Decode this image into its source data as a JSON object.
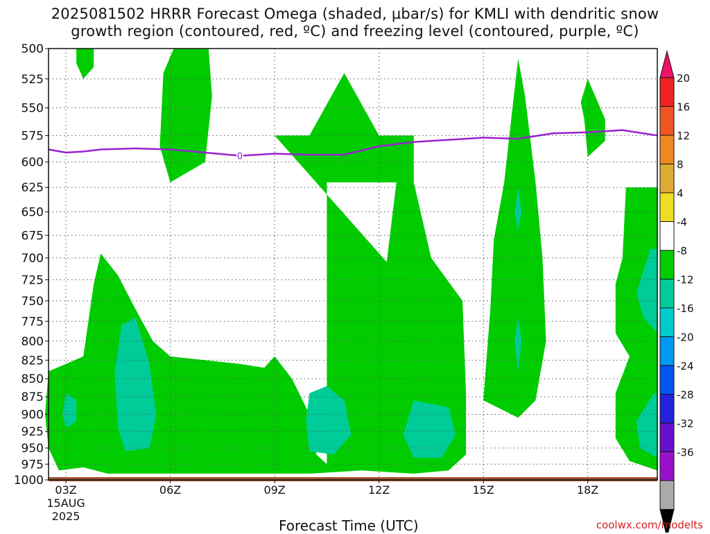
{
  "title": {
    "line1": "2025081502 HRRR Forecast Omega (shaded, µbar/s) for KMLI with dendritic snow",
    "line2": "growth region (contoured, red, ºC) and freezing level (contoured, purple, ºC)"
  },
  "xlabel": "Forecast Time (UTC)",
  "credit": "coolwx.com/modelts",
  "colors": {
    "green": "#00cc00",
    "teal": "#00cc99",
    "cyan_light": "#00cccc",
    "freezing": "#9922cc",
    "ground": "#a0522d",
    "grid": "#555555"
  },
  "chart_data": {
    "type": "heatmap",
    "title": "2025081502 HRRR Forecast Omega (shaded, µbar/s) for KMLI with dendritic snow growth region (contoured, red, ºC) and freezing level (contoured, purple, ºC)",
    "xlabel": "Forecast Time (UTC)",
    "ylabel": "",
    "x_range_hours": [
      2.5,
      20.0
    ],
    "y_ticks": [
      500,
      525,
      550,
      575,
      600,
      625,
      650,
      675,
      700,
      725,
      750,
      775,
      800,
      825,
      850,
      875,
      900,
      925,
      950,
      975,
      1000
    ],
    "y_range_mb": [
      500,
      1000
    ],
    "y_scale": "log-pressure",
    "x_ticks": [
      {
        "hour": 3,
        "label": "03Z",
        "date": "15AUG",
        "year": "2025"
      },
      {
        "hour": 6,
        "label": "06Z"
      },
      {
        "hour": 9,
        "label": "09Z"
      },
      {
        "hour": 12,
        "label": "12Z"
      },
      {
        "hour": 15,
        "label": "15Z"
      },
      {
        "hour": 18,
        "label": "18Z"
      }
    ],
    "colorbar": {
      "levels": [
        20,
        16,
        12,
        8,
        4,
        -4,
        -8,
        -12,
        -16,
        -20,
        -24,
        -28,
        -32,
        -36
      ],
      "colors": [
        "#ee1166",
        "#ee2222",
        "#ee5522",
        "#ee8822",
        "#ddaa33",
        "#eedd22",
        "#ffffff",
        "#00cc00",
        "#00cc99",
        "#00cccc",
        "#0099ee",
        "#0055ee",
        "#2222dd",
        "#6611cc",
        "#9911cc",
        "#aaaaaa",
        "#000000"
      ]
    },
    "freezing_level": {
      "label": "0",
      "points": [
        [
          2.5,
          588
        ],
        [
          3.0,
          591
        ],
        [
          3.5,
          590
        ],
        [
          4.0,
          588
        ],
        [
          5.0,
          587
        ],
        [
          6.0,
          588
        ],
        [
          7.0,
          591
        ],
        [
          8.0,
          594
        ],
        [
          9.0,
          592
        ],
        [
          10.0,
          593
        ],
        [
          11.0,
          593
        ],
        [
          12.0,
          585
        ],
        [
          13.0,
          581
        ],
        [
          14.0,
          579
        ],
        [
          15.0,
          577
        ],
        [
          16.0,
          578
        ],
        [
          17.0,
          573
        ],
        [
          18.0,
          572
        ],
        [
          19.0,
          570
        ],
        [
          20.0,
          575
        ]
      ],
      "label_at": [
        8.0,
        594
      ]
    },
    "omega_regions": [
      {
        "level": "-4 to -8",
        "color": "green",
        "hour_mb": [
          [
            3.5,
            500
          ],
          [
            3.8,
            500
          ],
          [
            3.8,
            515
          ],
          [
            3.5,
            525
          ],
          [
            3.3,
            512
          ],
          [
            3.3,
            500
          ]
        ]
      },
      {
        "level": "-4 to -8",
        "color": "green",
        "hour_mb": [
          [
            6.1,
            500
          ],
          [
            7.1,
            500
          ],
          [
            7.2,
            540
          ],
          [
            7.0,
            600
          ],
          [
            6.0,
            620
          ],
          [
            5.7,
            585
          ],
          [
            5.8,
            520
          ]
        ]
      },
      {
        "level": "-4 to -8",
        "color": "green",
        "hour_mb": [
          [
            9.0,
            575
          ],
          [
            10.0,
            575
          ],
          [
            11.0,
            520
          ],
          [
            12.0,
            575
          ],
          [
            13.0,
            575
          ],
          [
            13.0,
            620
          ],
          [
            12.0,
            620
          ],
          [
            10.5,
            620
          ],
          [
            10.5,
            640
          ],
          [
            10.5,
            975
          ],
          [
            10.2,
            960
          ],
          [
            10.0,
            900
          ],
          [
            9.5,
            850
          ],
          [
            9.0,
            820
          ],
          [
            8.7,
            835
          ],
          [
            8.0,
            830
          ],
          [
            6.0,
            820
          ],
          [
            5.5,
            800
          ],
          [
            5.0,
            760
          ],
          [
            4.5,
            720
          ],
          [
            4.0,
            695
          ],
          [
            3.8,
            730
          ],
          [
            3.5,
            820
          ],
          [
            3.0,
            830
          ],
          [
            2.5,
            840
          ],
          [
            2.4,
            900
          ],
          [
            2.5,
            950
          ],
          [
            2.8,
            985
          ],
          [
            3.5,
            980
          ],
          [
            4.2,
            990
          ],
          [
            5.0,
            990
          ],
          [
            7.0,
            990
          ],
          [
            10.0,
            990
          ],
          [
            11.5,
            985
          ],
          [
            13.0,
            990
          ],
          [
            14.0,
            985
          ],
          [
            14.5,
            960
          ],
          [
            14.5,
            870
          ],
          [
            14.4,
            750
          ],
          [
            13.5,
            700
          ],
          [
            13.0,
            620
          ],
          [
            12.5,
            620
          ],
          [
            12.0,
            780
          ],
          [
            11.5,
            850
          ],
          [
            12.0,
            880
          ],
          [
            12.5,
            830
          ],
          [
            12.8,
            770
          ],
          [
            13.0,
            740
          ]
        ]
      },
      {
        "level": "-4 to -8",
        "color": "green",
        "hour_mb": [
          [
            16.0,
            508
          ],
          [
            16.2,
            540
          ],
          [
            16.5,
            620
          ],
          [
            16.7,
            700
          ],
          [
            16.8,
            800
          ],
          [
            16.5,
            880
          ],
          [
            16.0,
            905
          ],
          [
            15.0,
            880
          ],
          [
            15.2,
            760
          ],
          [
            15.3,
            680
          ],
          [
            15.6,
            620
          ],
          [
            15.8,
            560
          ]
        ]
      },
      {
        "level": "-4 to -8",
        "color": "green",
        "hour_mb": [
          [
            18.0,
            525
          ],
          [
            18.5,
            560
          ],
          [
            18.5,
            580
          ],
          [
            18.0,
            595
          ],
          [
            17.9,
            560
          ],
          [
            17.8,
            545
          ]
        ]
      },
      {
        "level": "-4 to -8",
        "color": "green",
        "hour_mb": [
          [
            19.1,
            625
          ],
          [
            20.0,
            625
          ],
          [
            20.0,
            985
          ],
          [
            19.2,
            970
          ],
          [
            18.8,
            935
          ],
          [
            18.8,
            870
          ],
          [
            19.2,
            820
          ],
          [
            18.8,
            790
          ],
          [
            18.8,
            730
          ],
          [
            19.0,
            700
          ]
        ]
      },
      {
        "level": "-8 to -12",
        "color": "teal",
        "hour_mb": [
          [
            4.6,
            780
          ],
          [
            5.0,
            770
          ],
          [
            5.4,
            830
          ],
          [
            5.6,
            900
          ],
          [
            5.4,
            950
          ],
          [
            4.7,
            955
          ],
          [
            4.5,
            920
          ],
          [
            4.4,
            840
          ]
        ]
      },
      {
        "level": "-8 to -12",
        "color": "teal",
        "hour_mb": [
          [
            3.0,
            870
          ],
          [
            3.3,
            880
          ],
          [
            3.3,
            910
          ],
          [
            3.0,
            920
          ],
          [
            2.9,
            900
          ]
        ]
      },
      {
        "level": "-8 to -12",
        "color": "teal",
        "hour_mb": [
          [
            10.0,
            870
          ],
          [
            10.5,
            860
          ],
          [
            11.0,
            880
          ],
          [
            11.2,
            930
          ],
          [
            10.7,
            960
          ],
          [
            10.0,
            955
          ],
          [
            9.9,
            910
          ]
        ]
      },
      {
        "level": "-8 to -12",
        "color": "teal",
        "hour_mb": [
          [
            13.0,
            880
          ],
          [
            14.0,
            890
          ],
          [
            14.2,
            930
          ],
          [
            13.8,
            965
          ],
          [
            13.0,
            965
          ],
          [
            12.7,
            930
          ]
        ]
      },
      {
        "level": "-8 to -12",
        "color": "teal",
        "hour_mb": [
          [
            16.0,
            625
          ],
          [
            16.1,
            650
          ],
          [
            16.0,
            670
          ],
          [
            15.9,
            650
          ]
        ]
      },
      {
        "level": "-8 to -12",
        "color": "teal",
        "hour_mb": [
          [
            16.0,
            770
          ],
          [
            16.1,
            800
          ],
          [
            16.0,
            840
          ],
          [
            15.9,
            800
          ]
        ]
      },
      {
        "level": "-8 to -12",
        "color": "teal",
        "hour_mb": [
          [
            19.8,
            690
          ],
          [
            20.0,
            690
          ],
          [
            20.0,
            790
          ],
          [
            19.6,
            770
          ],
          [
            19.4,
            740
          ]
        ]
      },
      {
        "level": "-8 to -12",
        "color": "teal",
        "hour_mb": [
          [
            19.9,
            870
          ],
          [
            20.0,
            870
          ],
          [
            20.0,
            965
          ],
          [
            19.5,
            950
          ],
          [
            19.4,
            910
          ]
        ]
      }
    ]
  }
}
